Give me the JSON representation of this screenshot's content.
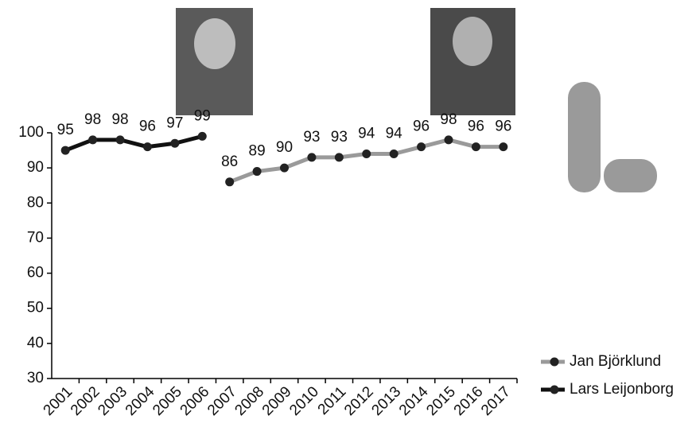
{
  "chart_data": {
    "type": "line",
    "categories": [
      "2001",
      "2002",
      "2003",
      "2004",
      "2005",
      "2006",
      "2007",
      "2008",
      "2009",
      "2010",
      "2011",
      "2012",
      "2013",
      "2014",
      "2015",
      "2016",
      "2017"
    ],
    "series": [
      {
        "name": "Jan Björklund",
        "color": "#9a9a9a",
        "marker_color": "#222222",
        "values": [
          null,
          null,
          null,
          null,
          null,
          null,
          86,
          89,
          90,
          93,
          93,
          94,
          94,
          96,
          98,
          96,
          96
        ]
      },
      {
        "name": "Lars Leijonborg",
        "color": "#111111",
        "marker_color": "#222222",
        "values": [
          95,
          98,
          98,
          96,
          97,
          99,
          null,
          null,
          null,
          null,
          null,
          null,
          null,
          null,
          null,
          null,
          null
        ]
      }
    ],
    "ylim": [
      30,
      100
    ],
    "yticks": [
      30,
      40,
      50,
      60,
      70,
      80,
      90,
      100
    ],
    "grid": false,
    "legend": "bottom-right"
  }
}
